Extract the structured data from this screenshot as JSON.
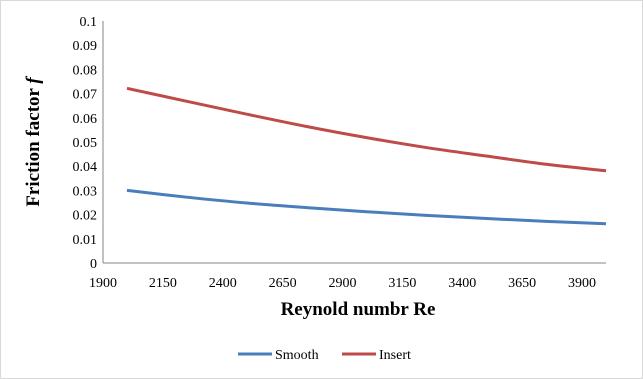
{
  "chart_data": {
    "type": "line",
    "title": "",
    "xlabel": "Reynold numbr Re",
    "ylabel_main": "Friction factor ",
    "ylabel_symbol": "f",
    "xlim": [
      1900,
      4000
    ],
    "ylim": [
      0,
      0.1
    ],
    "x_ticks": [
      "1900",
      "2150",
      "2400",
      "2650",
      "2900",
      "3150",
      "3400",
      "3650",
      "3900"
    ],
    "y_ticks": [
      "0",
      "0.01",
      "0.02",
      "0.03",
      "0.04",
      "0.05",
      "0.06",
      "0.07",
      "0.08",
      "0.09",
      "0.1"
    ],
    "grid": false,
    "legend_position": "bottom",
    "series": [
      {
        "name": "Smooth",
        "color": "#4a7ebb",
        "x": [
          2000,
          2250,
          2500,
          2750,
          3000,
          3250,
          3500,
          3750,
          4000
        ],
        "y": [
          0.03,
          0.0272,
          0.0248,
          0.0229,
          0.0212,
          0.0197,
          0.0184,
          0.0172,
          0.0162
        ]
      },
      {
        "name": "Insert",
        "color": "#be4b48",
        "x": [
          2000,
          2250,
          2500,
          2750,
          3000,
          3250,
          3500,
          3750,
          4000
        ],
        "y": [
          0.0722,
          0.0668,
          0.0615,
          0.0564,
          0.0518,
          0.0477,
          0.0442,
          0.0408,
          0.0381
        ]
      }
    ]
  }
}
